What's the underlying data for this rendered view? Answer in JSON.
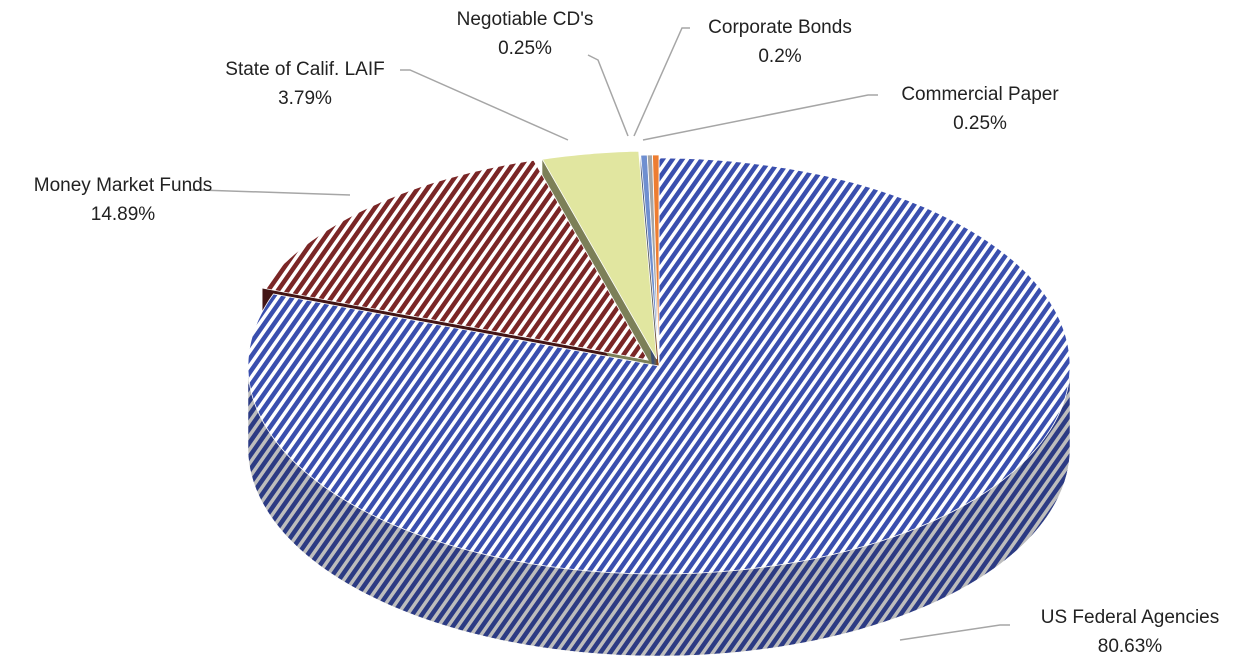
{
  "chart_data": {
    "type": "pie3d",
    "categories": [
      "US Federal Agencies",
      "Money Market Funds",
      "State of Calif. LAIF",
      "Negotiable CD's",
      "Corporate Bonds",
      "Commercial Paper"
    ],
    "values": [
      80.63,
      14.89,
      3.79,
      0.25,
      0.2,
      0.25
    ],
    "value_labels": [
      "80.63%",
      "14.89%",
      "3.79%",
      "0.25%",
      "0.2%",
      "0.25%"
    ],
    "colors": [
      "#3a4fae",
      "#7a2626",
      "#e1e6a0",
      "#6f8fd0",
      "#a5a5a5",
      "#ed7d31"
    ],
    "hatched": [
      true,
      true,
      false,
      false,
      false,
      false
    ]
  }
}
